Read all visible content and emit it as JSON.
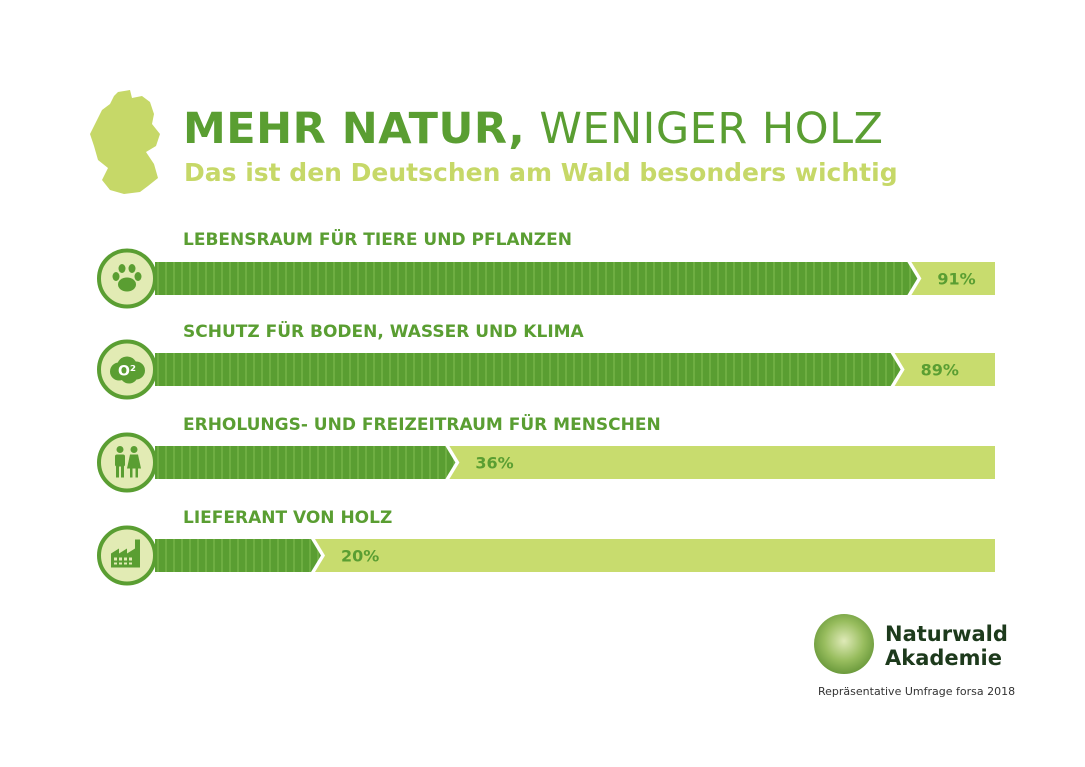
{
  "title_bold": "MEHR NATUR,",
  "title_light": "WENIGER HOLZ",
  "subtitle": "Das ist den Deutschen am Wald besonders wichtig",
  "logo": {
    "line1": "Naturwald",
    "line2": "Akademie"
  },
  "source": "Repräsentative Umfrage forsa 2018",
  "colors": {
    "bar": "#5a9e32",
    "track": "#c8dc6e",
    "icon_bg": "#e2ebb4",
    "title": "#5a9e32",
    "subtitle": "#c6d868"
  },
  "chart_data": {
    "type": "bar",
    "orientation": "horizontal",
    "categories": [
      "LEBENSRAUM FÜR TIERE UND PFLANZEN",
      "SCHUTZ FÜR BODEN, WASSER UND KLIMA",
      "ERHOLUNGS- UND FREIZEITRAUM FÜR MENSCHEN",
      "LIEFERANT VON HOLZ"
    ],
    "values": [
      91,
      89,
      36,
      20
    ],
    "value_labels": [
      "91%",
      "89%",
      "36%",
      "20%"
    ],
    "icons": [
      "paw-icon",
      "o2-cloud-icon",
      "people-icon",
      "factory-icon"
    ],
    "icon_text_o2": "O²",
    "xlim": [
      0,
      100
    ]
  }
}
